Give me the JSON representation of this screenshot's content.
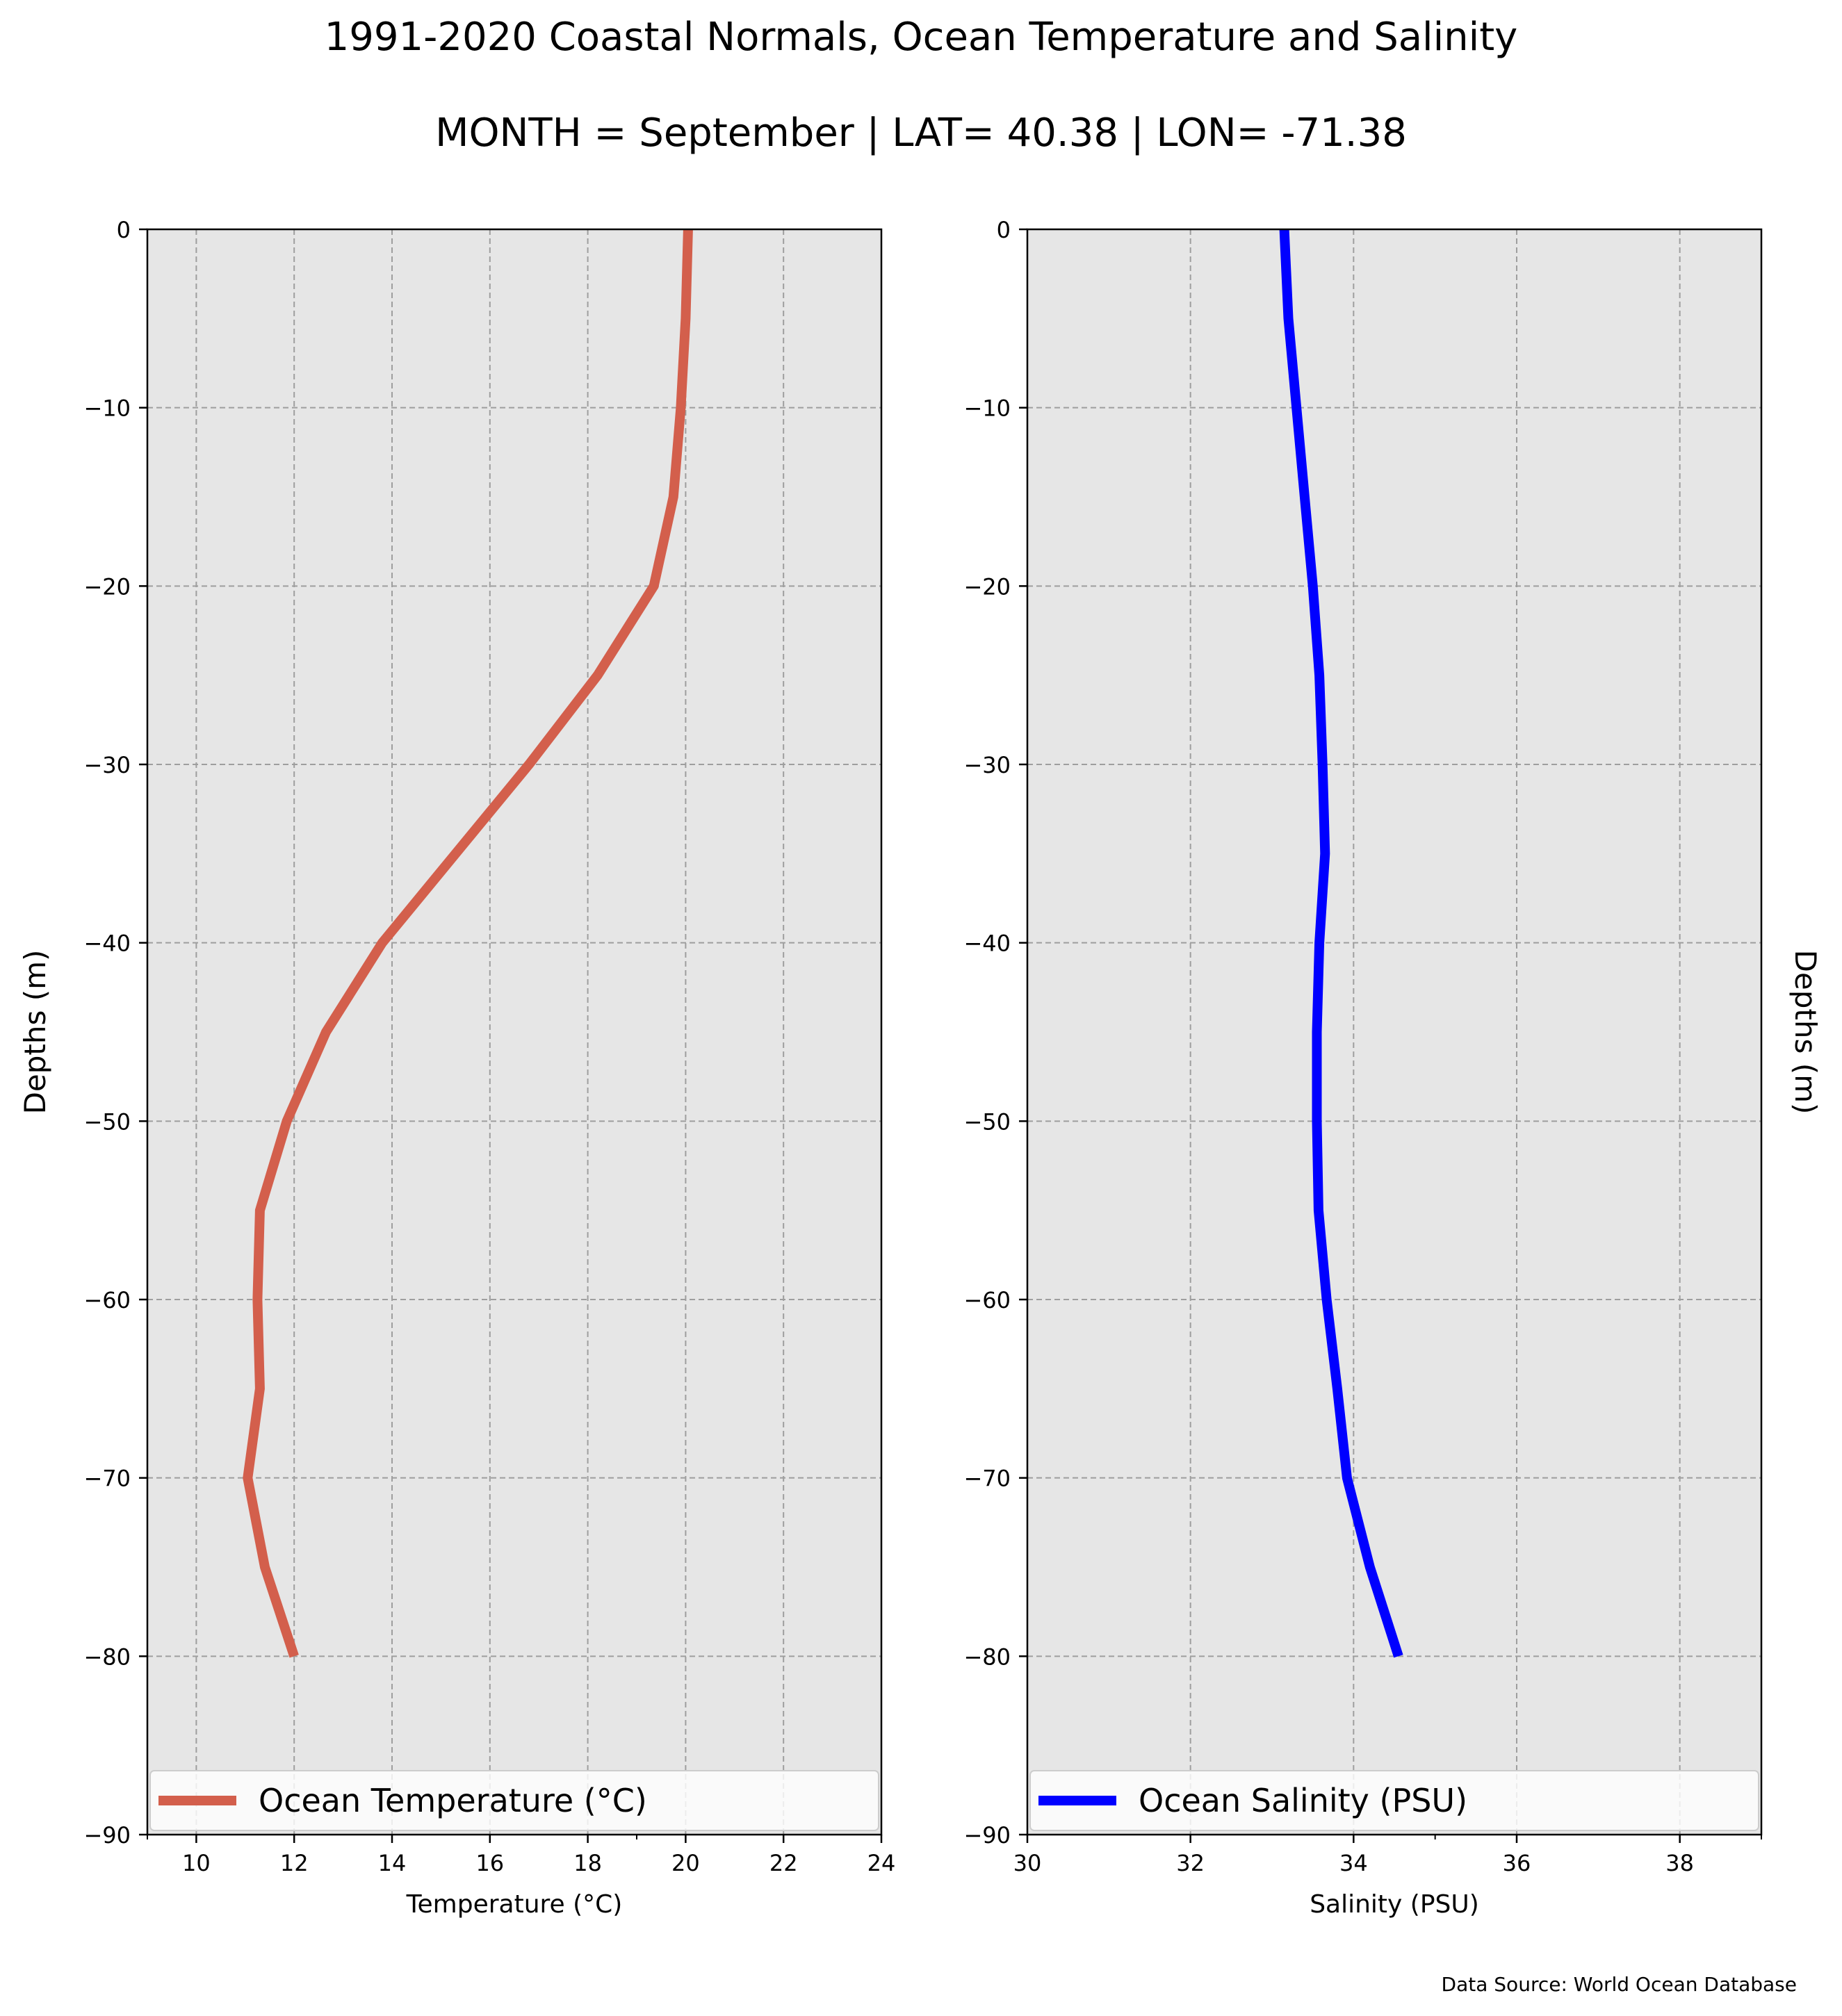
{
  "figure": {
    "title": "1991-2020 Coastal Normals, Ocean Temperature and Salinity",
    "subtitle": "MONTH = September | LAT= 40.38 | LON= -71.38",
    "source": "Data Source: World Ocean Database"
  },
  "colors": {
    "temperature": "#d35f4c",
    "salinity": "#0000ff",
    "panel_background": "#e6e6e6",
    "gridline": "#9e9e9e"
  },
  "chart_data": [
    {
      "type": "line",
      "xlabel": "Temperature ($^\\circ$C)",
      "xlabel_display": "Temperature (°C)",
      "ylabel": "Depths (m)",
      "xlim": [
        9,
        24
      ],
      "ylim": [
        -90,
        0
      ],
      "xticks": [
        10,
        12,
        14,
        16,
        18,
        20,
        22,
        24
      ],
      "yticks": [
        0,
        -10,
        -20,
        -30,
        -40,
        -50,
        -60,
        -70,
        -80,
        -90
      ],
      "grid": true,
      "legend": "lower center",
      "series": [
        {
          "name": "Ocean Temperature (°C)",
          "x": [
            20.05,
            20.0,
            19.9,
            19.75,
            19.35,
            18.2,
            16.8,
            15.3,
            13.8,
            12.65,
            11.85,
            11.3,
            11.25,
            11.3,
            11.05,
            11.4,
            12.0
          ],
          "y": [
            0,
            -5,
            -10,
            -15,
            -20,
            -25,
            -30,
            -35,
            -40,
            -45,
            -50,
            -55,
            -60,
            -65,
            -70,
            -75,
            -80
          ]
        }
      ]
    },
    {
      "type": "line",
      "xlabel": "Salinity (PSU)",
      "ylabel": "Depths (m)",
      "xlim": [
        30,
        39
      ],
      "ylim": [
        -90,
        0
      ],
      "xticks": [
        30,
        32,
        34,
        36,
        38
      ],
      "yticks": [
        0,
        -10,
        -20,
        -30,
        -40,
        -50,
        -60,
        -70,
        -80,
        -90
      ],
      "grid": true,
      "legend": "lower center",
      "series": [
        {
          "name": "Ocean Salinity (PSU)",
          "x": [
            33.15,
            33.2,
            33.3,
            33.4,
            33.5,
            33.58,
            33.62,
            33.65,
            33.58,
            33.55,
            33.55,
            33.57,
            33.67,
            33.8,
            33.92,
            34.2,
            34.55
          ],
          "y": [
            0,
            -5,
            -10,
            -15,
            -20,
            -25,
            -30,
            -35,
            -40,
            -45,
            -50,
            -55,
            -60,
            -65,
            -70,
            -75,
            -80
          ]
        }
      ]
    }
  ]
}
